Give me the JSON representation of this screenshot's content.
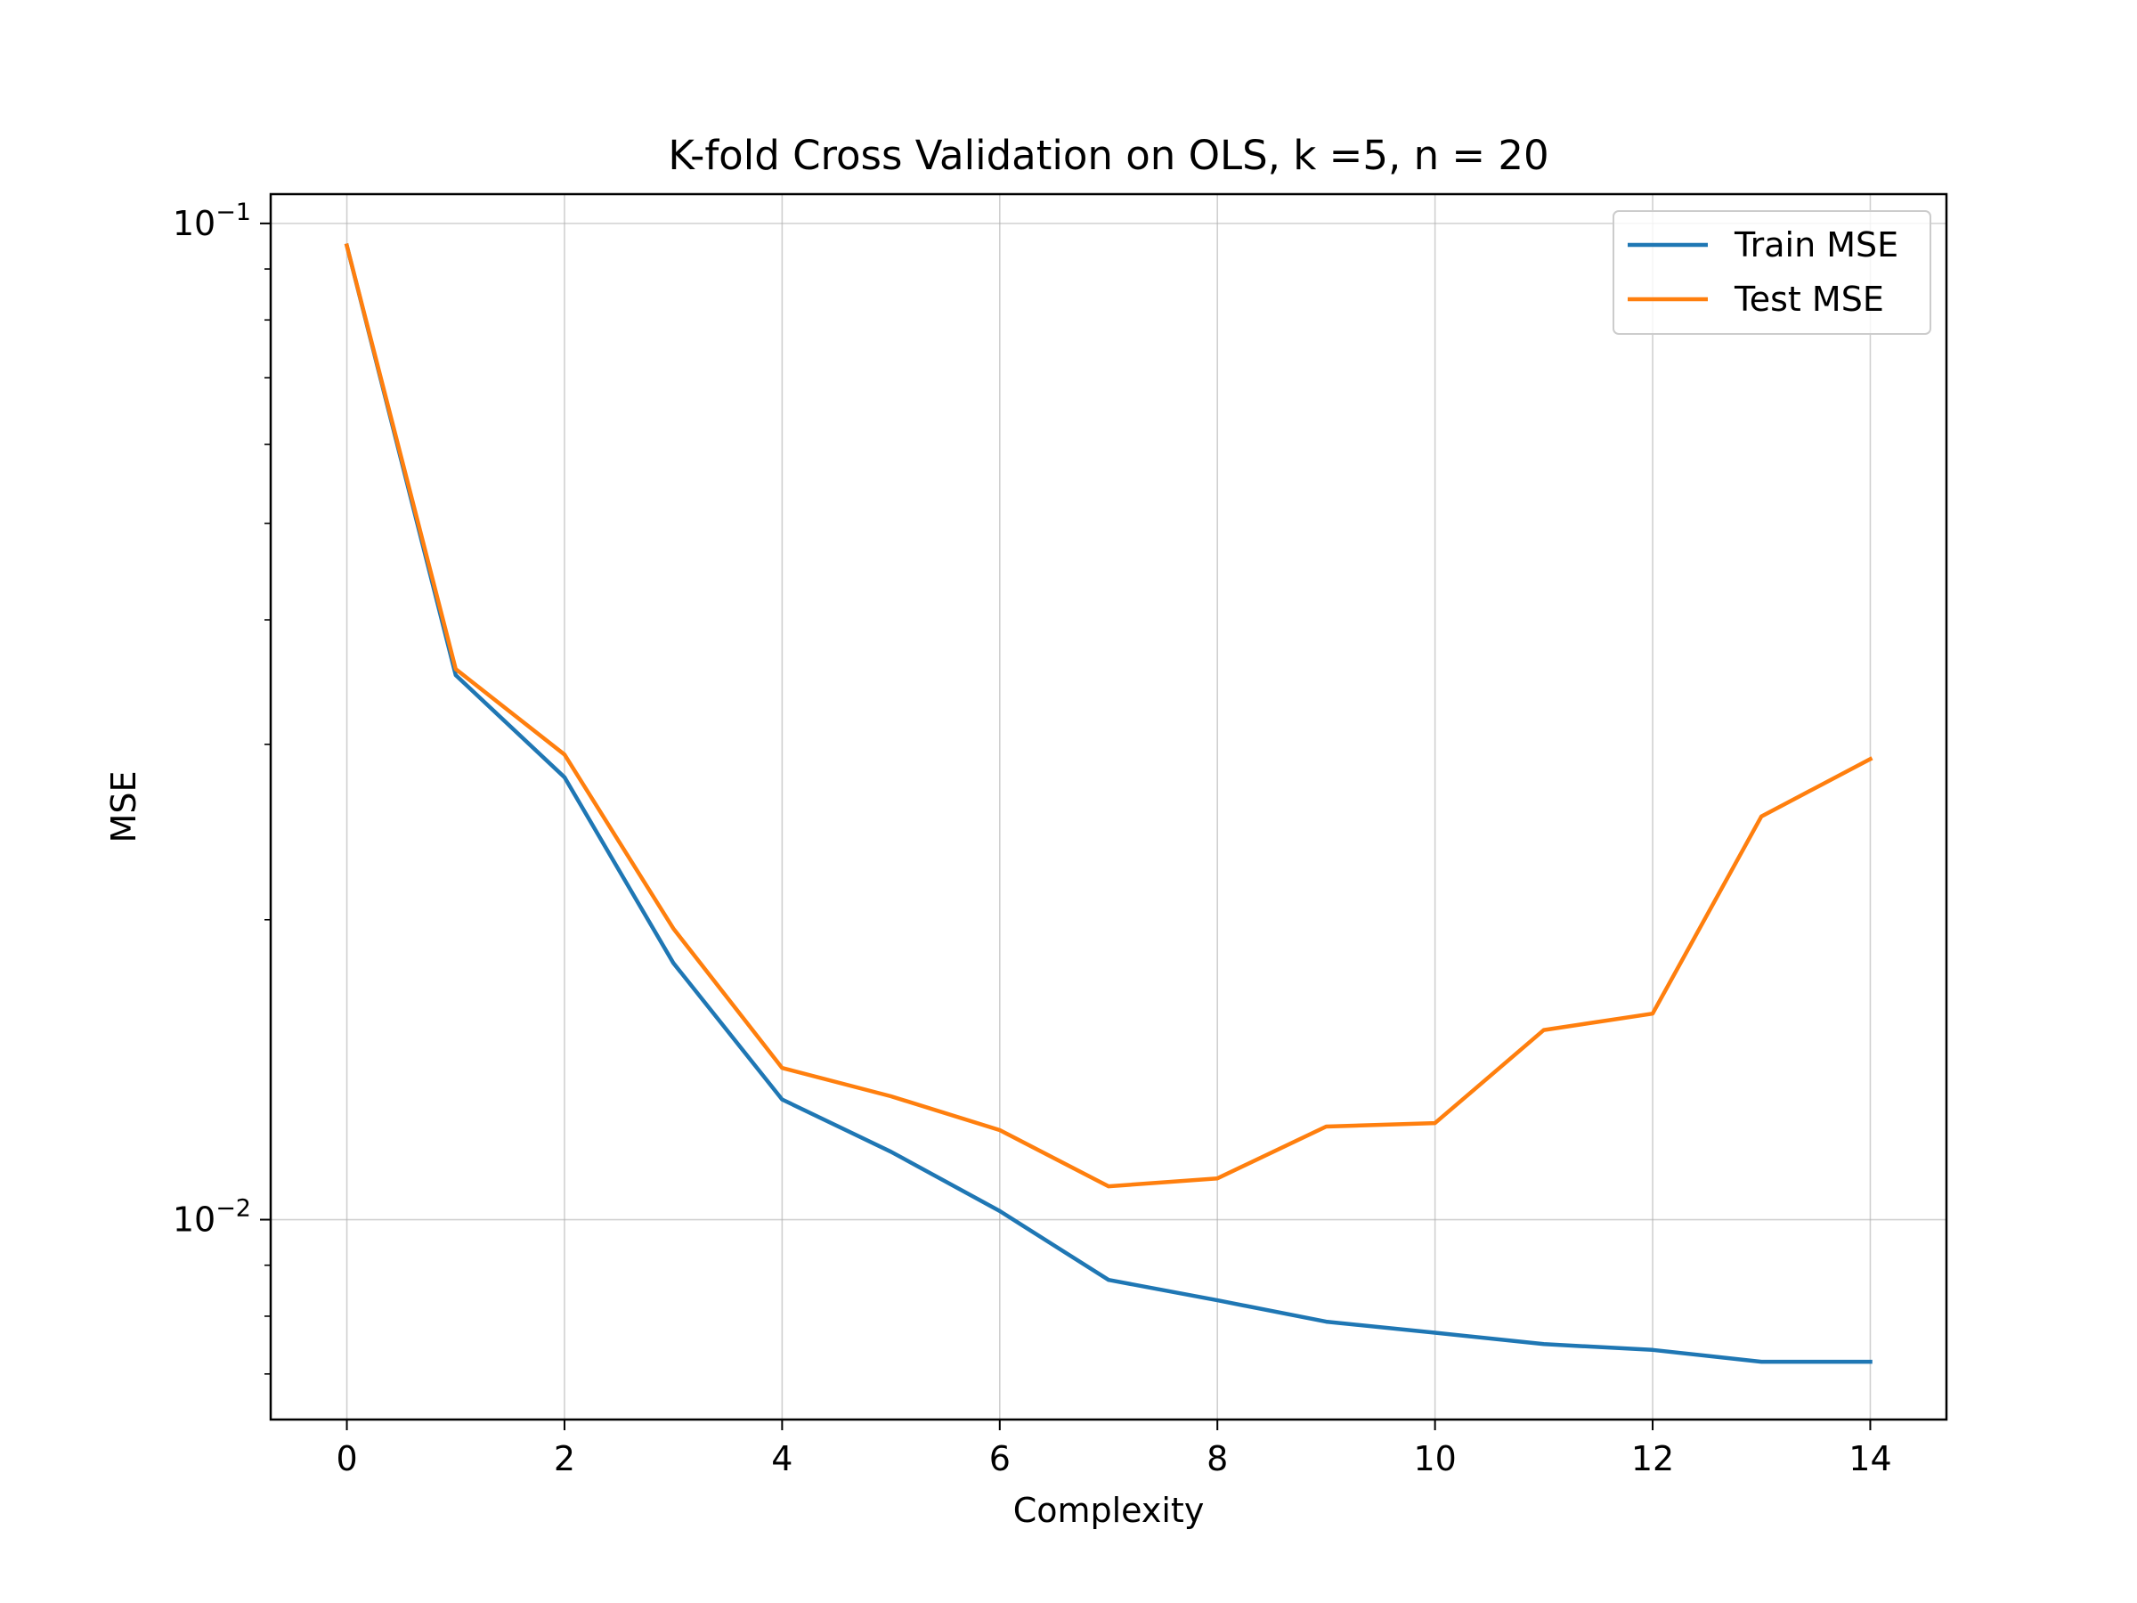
{
  "chart_data": {
    "type": "line",
    "title": "K-fold Cross Validation on OLS, k =5, n = 20",
    "xlabel": "Complexity",
    "ylabel": "MSE",
    "y_scale": "log",
    "xlim": [
      -0.7,
      14.7
    ],
    "ylim": [
      0.0063,
      0.107
    ],
    "grid": true,
    "legend_position": "top-right",
    "x": [
      0,
      1,
      2,
      3,
      4,
      5,
      6,
      7,
      8,
      9,
      10,
      11,
      12,
      13,
      14
    ],
    "x_ticks": [
      "0",
      "2",
      "4",
      "6",
      "8",
      "10",
      "12",
      "14"
    ],
    "x_tick_values": [
      0,
      2,
      4,
      6,
      8,
      10,
      12,
      14
    ],
    "y_ticks": [
      {
        "value": 0.1,
        "base": "10",
        "exp": "−1"
      },
      {
        "value": 0.01,
        "base": "10",
        "exp": "−2"
      }
    ],
    "series": [
      {
        "name": "Train MSE",
        "color": "#1f77b4",
        "values": [
          0.095,
          0.0352,
          0.0278,
          0.0181,
          0.0132,
          0.0117,
          0.0102,
          0.0087,
          0.0083,
          0.0079,
          0.0077,
          0.0075,
          0.0074,
          0.0072,
          0.0072
        ]
      },
      {
        "name": "Test MSE",
        "color": "#ff7f0e",
        "values": [
          0.095,
          0.0357,
          0.0293,
          0.0196,
          0.0142,
          0.0133,
          0.0123,
          0.0108,
          0.011,
          0.0124,
          0.0125,
          0.0155,
          0.0161,
          0.0254,
          0.029
        ]
      }
    ]
  }
}
